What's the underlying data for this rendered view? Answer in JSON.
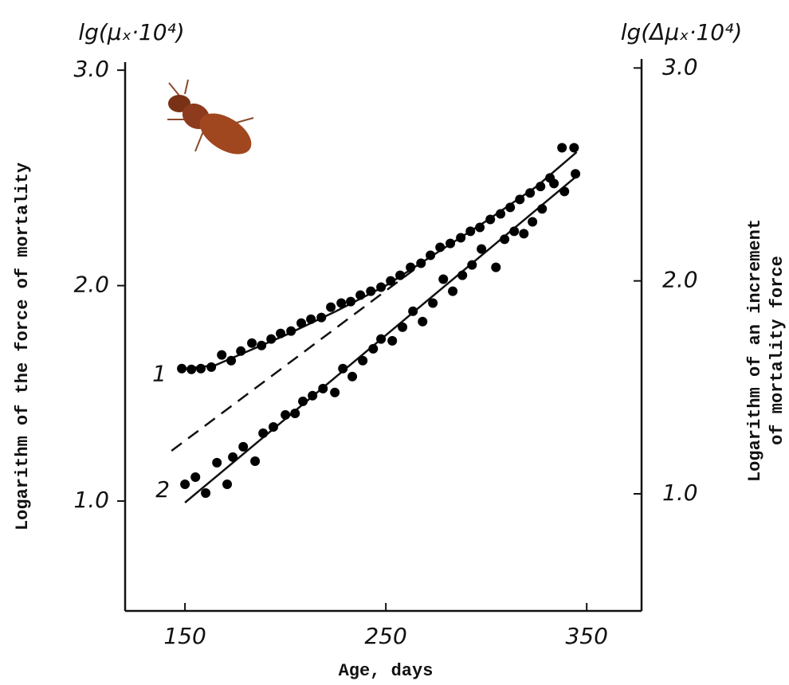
{
  "chart_data": {
    "type": "scatter",
    "y_unit_label": "lg(μₓ·10⁴)",
    "y2_unit_label": "lg(Δμₓ·10⁴)",
    "ylabel": "Logarithm of the force of mortality",
    "y2label": [
      "Logarithm of an increment",
      "of mortality force"
    ],
    "xlabel": "Age, days",
    "xlim": [
      120.2,
      377.3
    ],
    "ylim": [
      0.49,
      3.03
    ],
    "y2lim": [
      0.45,
      3.02
    ],
    "xticks": [
      150,
      250,
      350
    ],
    "yticks": [
      {
        "value": 1,
        "label": "1.0"
      },
      {
        "value": 2,
        "label": "2.0"
      },
      {
        "value": 3,
        "label": "3.0"
      }
    ],
    "y2ticks": [
      {
        "value": 1,
        "label": "1.0"
      },
      {
        "value": 2,
        "label": "2.0"
      },
      {
        "value": 3,
        "label": "3.0"
      }
    ],
    "series": [
      {
        "name": "1",
        "color": "#000000",
        "x": [
          148.4,
          153.2,
          157.9,
          163.1,
          168.3,
          173.0,
          177.8,
          183.3,
          188.1,
          192.9,
          197.6,
          202.8,
          207.9,
          212.7,
          217.9,
          222.6,
          227.8,
          232.5,
          237.3,
          242.5,
          247.6,
          252.4,
          257.1,
          262.3,
          267.5,
          272.2,
          277.0,
          282.1,
          287.3,
          292.1,
          296.8,
          302.0,
          307.1,
          311.9,
          316.7,
          321.8,
          327.0,
          331.7,
          337.7,
          343.7
        ],
        "values": [
          1.615,
          1.611,
          1.615,
          1.622,
          1.678,
          1.652,
          1.696,
          1.733,
          1.722,
          1.752,
          1.778,
          1.789,
          1.826,
          1.844,
          1.852,
          1.9,
          1.919,
          1.926,
          1.956,
          1.974,
          1.993,
          2.022,
          2.048,
          2.085,
          2.104,
          2.141,
          2.178,
          2.196,
          2.222,
          2.252,
          2.27,
          2.307,
          2.333,
          2.363,
          2.4,
          2.43,
          2.46,
          2.5,
          2.64,
          2.64
        ]
      },
      {
        "name": "2",
        "color": "#000000",
        "x": [
          150.0,
          155.2,
          160.3,
          165.9,
          171.0,
          173.8,
          179.0,
          184.9,
          188.9,
          194.0,
          200.0,
          204.8,
          208.7,
          213.5,
          218.7,
          224.6,
          228.6,
          233.3,
          238.5,
          243.7,
          247.6,
          253.2,
          258.3,
          263.5,
          268.3,
          273.4,
          278.6,
          283.3,
          288.1,
          292.9,
          297.6,
          304.8,
          309.1,
          313.9,
          318.7,
          323.0,
          327.8,
          333.7,
          338.9,
          344.4
        ],
        "values": [
          1.078,
          1.111,
          1.037,
          1.178,
          1.078,
          1.204,
          1.252,
          1.185,
          1.315,
          1.344,
          1.4,
          1.407,
          1.463,
          1.489,
          1.522,
          1.504,
          1.615,
          1.578,
          1.652,
          1.707,
          1.752,
          1.744,
          1.807,
          1.881,
          1.833,
          1.919,
          2.03,
          1.974,
          2.048,
          2.096,
          2.17,
          2.085,
          2.215,
          2.252,
          2.241,
          2.296,
          2.356,
          2.474,
          2.437,
          2.519
        ]
      }
    ],
    "fit_lines": [
      {
        "style": "solid",
        "x": [
          150,
          165,
          180,
          200,
          225,
          250,
          275,
          300,
          325,
          345
        ],
        "values": [
          1.615,
          1.63,
          1.69,
          1.77,
          1.88,
          2.0,
          2.15,
          2.3,
          2.46,
          2.62
        ]
      },
      {
        "style": "solid",
        "x": [
          150,
          346.4
        ],
        "values": [
          0.993,
          2.519
        ]
      },
      {
        "style": "dashed",
        "x": [
          143.3,
          268.3
        ],
        "values": [
          1.233,
          2.104
        ]
      }
    ]
  }
}
